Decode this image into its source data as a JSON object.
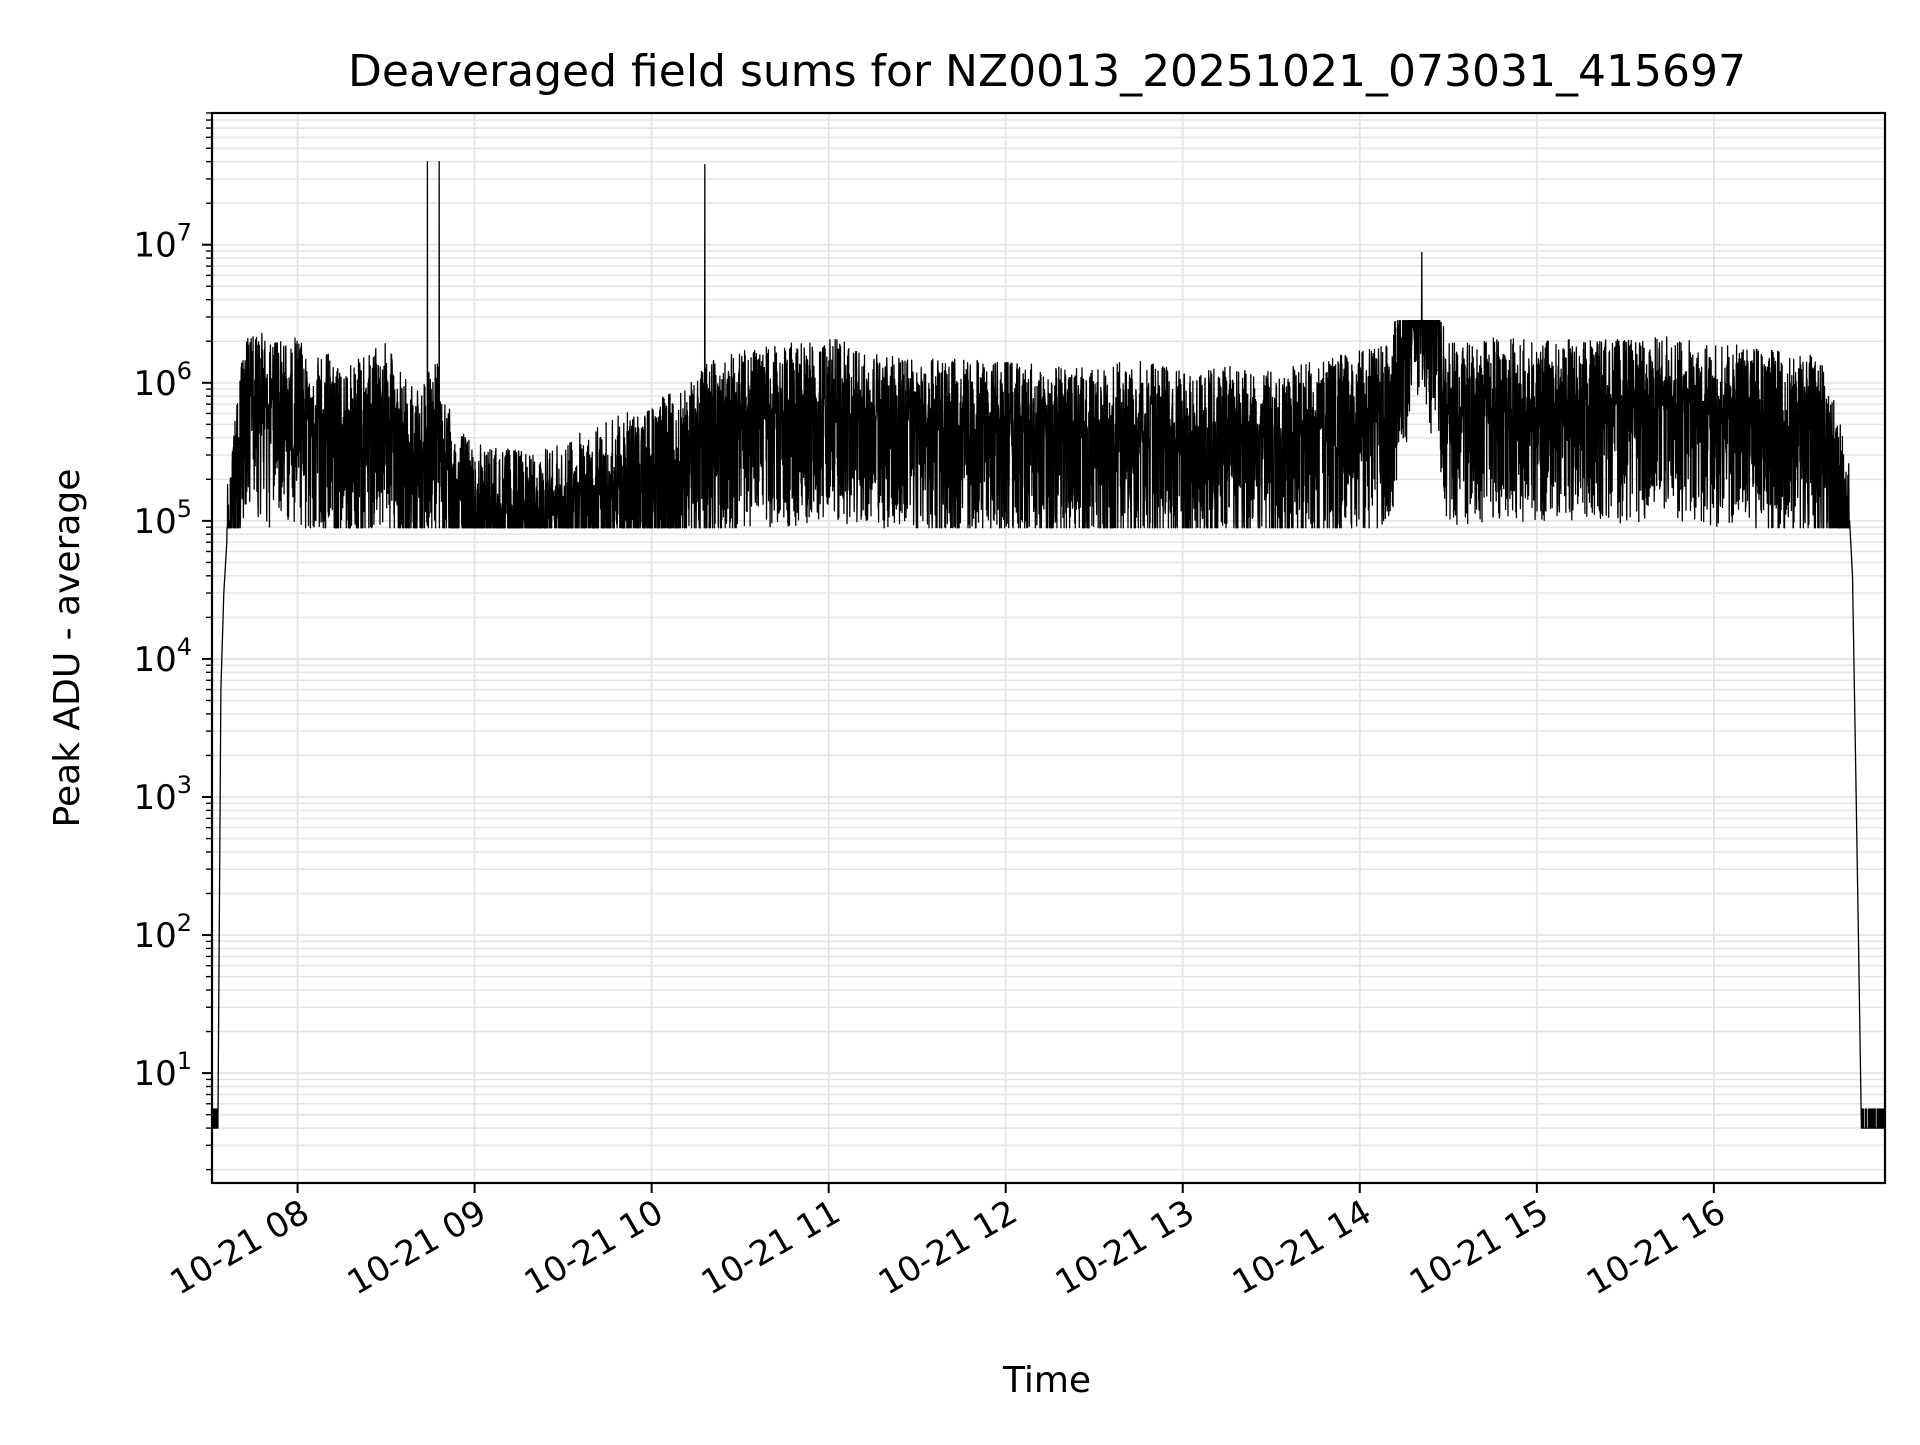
{
  "chart_data": {
    "type": "line",
    "title": "Deaveraged field sums for NZ0013_20251021_073031_415697",
    "xlabel": "Time",
    "ylabel": "Peak ADU - average",
    "yscale": "log",
    "ylim": [
      1.6,
      90000000
    ],
    "xlim": [
      "10-21 07:31",
      "10-21 16:58"
    ],
    "grid": true,
    "line_color": "#000000",
    "grid_color": "#e5e5e5",
    "x_ticks": [
      "10-21 08",
      "10-21 09",
      "10-21 10",
      "10-21 11",
      "10-21 12",
      "10-21 13",
      "10-21 14",
      "10-21 15",
      "10-21 16"
    ],
    "y_ticks": [
      {
        "base": "10",
        "exp": "1",
        "value": 10
      },
      {
        "base": "10",
        "exp": "2",
        "value": 100
      },
      {
        "base": "10",
        "exp": "3",
        "value": 1000
      },
      {
        "base": "10",
        "exp": "4",
        "value": 10000
      },
      {
        "base": "10",
        "exp": "5",
        "value": 100000
      },
      {
        "base": "10",
        "exp": "6",
        "value": 1000000
      },
      {
        "base": "10",
        "exp": "7",
        "value": 10000000
      }
    ],
    "series": [
      {
        "x": [
          "10-21 07:31",
          "10-21 07:33",
          "10-21 07:34",
          "10-21 07:35",
          "10-21 07:36",
          "10-21 07:37",
          "10-21 07:38",
          "10-21 07:40",
          "10-21 07:42",
          "10-21 07:44",
          "10-21 07:46",
          "10-21 07:48",
          "10-21 07:50",
          "10-21 07:52",
          "10-21 07:55",
          "10-21 08:00",
          "10-21 08:05",
          "10-21 08:10",
          "10-21 08:15",
          "10-21 08:20",
          "10-21 08:25",
          "10-21 08:30",
          "10-21 08:35",
          "10-21 08:40",
          "10-21 08:44",
          "10-21 08:46",
          "10-21 08:48",
          "10-21 08:51",
          "10-21 08:54",
          "10-21 09:00",
          "10-21 09:10",
          "10-21 09:20",
          "10-21 09:30",
          "10-21 09:35",
          "10-21 09:40",
          "10-21 09:50",
          "10-21 09:58",
          "10-21 10:00",
          "10-21 10:10",
          "10-21 10:16",
          "10-21 10:18",
          "10-21 10:20",
          "10-21 10:30",
          "10-21 10:45",
          "10-21 11:00",
          "10-21 11:15",
          "10-21 11:30",
          "10-21 11:45",
          "10-21 12:00",
          "10-21 12:15",
          "10-21 12:30",
          "10-21 12:45",
          "10-21 13:00",
          "10-21 13:15",
          "10-21 13:30",
          "10-21 13:45",
          "10-21 14:00",
          "10-21 14:10",
          "10-21 14:21",
          "10-21 14:30",
          "10-21 14:45",
          "10-21 15:00",
          "10-21 15:15",
          "10-21 15:30",
          "10-21 15:45",
          "10-21 16:00",
          "10-21 16:15",
          "10-21 16:30",
          "10-21 16:36",
          "10-21 16:40",
          "10-21 16:43",
          "10-21 16:45",
          "10-21 16:46",
          "10-21 16:47",
          "10-21 16:48",
          "10-21 16:49",
          "10-21 16:50",
          "10-21 16:51",
          "10-21 16:52",
          "10-21 16:55",
          "10-21 16:58"
        ],
        "y": [
          4,
          4,
          6000,
          30000,
          70000,
          100000,
          150000,
          400000,
          800000,
          1200000,
          900000,
          1000000,
          700000,
          1100000,
          800000,
          900000,
          600000,
          700000,
          500000,
          600000,
          700000,
          800000,
          500000,
          400000,
          40000000,
          600000,
          40000000,
          300000,
          200000,
          150000,
          140000,
          130000,
          150000,
          180000,
          200000,
          250000,
          250000,
          300000,
          400000,
          500000,
          38000000,
          600000,
          700000,
          800000,
          900000,
          700000,
          600000,
          650000,
          600000,
          550000,
          550000,
          600000,
          500000,
          550000,
          500000,
          600000,
          700000,
          800000,
          8800000,
          800000,
          900000,
          850000,
          900000,
          850000,
          900000,
          800000,
          750000,
          700000,
          600000,
          400000,
          200000,
          150000,
          100000,
          40000,
          2000,
          100,
          4,
          4,
          4,
          4,
          4
        ]
      }
    ]
  }
}
